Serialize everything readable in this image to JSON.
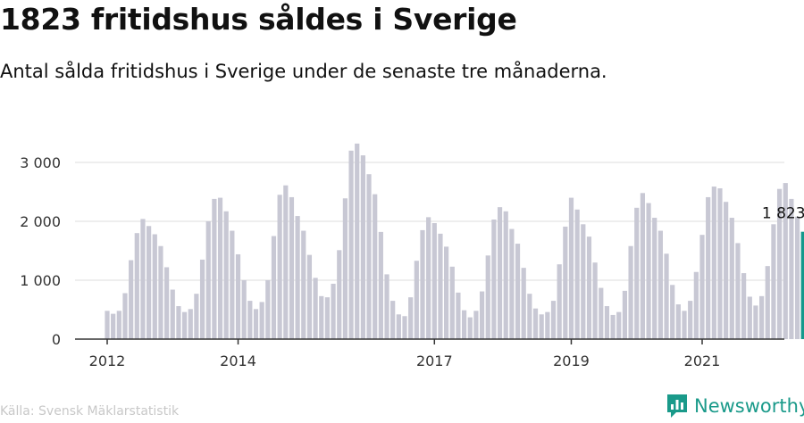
{
  "header": {
    "title": "1823 fritidshus såldes i Sverige",
    "subtitle": "Antal sålda fritidshus i Sverige under de senaste tre månaderna."
  },
  "footer": {
    "source": "Källa: Svensk Mäklarstatistik",
    "brand": "Newsworthy"
  },
  "colors": {
    "bar": "#c8c8d4",
    "highlight": "#14998c",
    "grid": "#dcdcdc",
    "axis": "#333333",
    "brand": "#1a9a8a"
  },
  "chart_data": {
    "type": "bar",
    "x_tick_labels": [
      "2012",
      "2014",
      "2017",
      "2019",
      "2021"
    ],
    "x_tick_positions": [
      0,
      22,
      55,
      78,
      100
    ],
    "y_ticks": [
      0,
      1000,
      2000,
      3000
    ],
    "y_tick_labels": [
      "0",
      "1 000",
      "2 000",
      "3 000"
    ],
    "ylim": [
      0,
      3300
    ],
    "highlight_label": "1 823",
    "values": [
      480,
      430,
      480,
      780,
      1340,
      1800,
      2040,
      1920,
      1780,
      1580,
      1220,
      840,
      560,
      460,
      510,
      770,
      1350,
      2000,
      2380,
      2400,
      2170,
      1840,
      1440,
      1000,
      650,
      510,
      630,
      1000,
      1750,
      2450,
      2610,
      2410,
      2090,
      1840,
      1430,
      1040,
      730,
      710,
      940,
      1510,
      2390,
      3200,
      3320,
      3120,
      2800,
      2460,
      1820,
      1100,
      650,
      420,
      390,
      710,
      1330,
      1850,
      2070,
      1970,
      1790,
      1570,
      1230,
      790,
      490,
      370,
      480,
      810,
      1420,
      2030,
      2240,
      2170,
      1870,
      1620,
      1210,
      770,
      520,
      420,
      460,
      650,
      1270,
      1910,
      2400,
      2200,
      1950,
      1740,
      1300,
      870,
      560,
      410,
      460,
      820,
      1580,
      2230,
      2480,
      2310,
      2060,
      1840,
      1450,
      920,
      590,
      480,
      650,
      1140,
      1770,
      2410,
      2590,
      2560,
      2330,
      2060,
      1630,
      1120,
      720,
      570,
      730,
      1240,
      1950,
      2550,
      2650,
      2380,
      2080,
      1823
    ]
  }
}
